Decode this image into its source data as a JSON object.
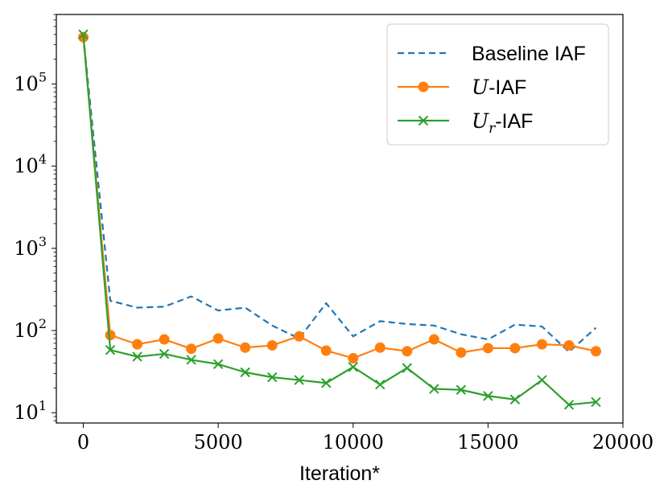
{
  "chart_data": {
    "type": "line",
    "title": "",
    "xlabel": "Iteration*",
    "ylabel": "",
    "xlim": [
      -1000,
      20000
    ],
    "ylim": [
      7.5,
      700000
    ],
    "yscale": "log",
    "grid": false,
    "legend_position": "top-right",
    "x_ticks": [
      0,
      5000,
      10000,
      15000,
      20000
    ],
    "x_tick_labels": [
      "0",
      "5000",
      "10000",
      "15000",
      "20000"
    ],
    "y_ticks": [
      10,
      100,
      1000,
      10000,
      100000
    ],
    "y_tick_labels": [
      {
        "base": "10",
        "exp": "1"
      },
      {
        "base": "10",
        "exp": "2"
      },
      {
        "base": "10",
        "exp": "3"
      },
      {
        "base": "10",
        "exp": "4"
      },
      {
        "base": "10",
        "exp": "5"
      }
    ],
    "series": [
      {
        "name": "Baseline IAF",
        "legend": {
          "main": "Baseline IAF"
        },
        "color": "#1f77b4",
        "style": "dashed",
        "marker": "none",
        "x": [
          0,
          1000,
          2000,
          3000,
          4000,
          5000,
          6000,
          7000,
          8000,
          9000,
          10000,
          11000,
          12000,
          13000,
          14000,
          15000,
          16000,
          17000,
          18000,
          19000
        ],
        "values": [
          380000,
          230,
          190,
          195,
          260,
          175,
          190,
          115,
          80,
          215,
          85,
          130,
          120,
          115,
          90,
          78,
          118,
          112,
          55,
          108
        ]
      },
      {
        "name": "U-IAF",
        "legend": {
          "sym": "U",
          "sub": "",
          "suffix": "-IAF"
        },
        "color": "#ff7f0e",
        "style": "solid",
        "marker": "circle",
        "x": [
          0,
          1000,
          2000,
          3000,
          4000,
          5000,
          6000,
          7000,
          8000,
          9000,
          10000,
          11000,
          12000,
          13000,
          14000,
          15000,
          16000,
          17000,
          18000,
          19000
        ],
        "values": [
          370000,
          88,
          68,
          78,
          60,
          80,
          62,
          66,
          85,
          57,
          46,
          62,
          56,
          78,
          54,
          61,
          61,
          68,
          66,
          56
        ]
      },
      {
        "name": "Ur-IAF",
        "legend": {
          "sym": "U",
          "sub": "r",
          "suffix": "-IAF"
        },
        "color": "#2ca02c",
        "style": "solid",
        "marker": "x",
        "x": [
          0,
          1000,
          2000,
          3000,
          4000,
          5000,
          6000,
          7000,
          8000,
          9000,
          10000,
          11000,
          12000,
          13000,
          14000,
          15000,
          16000,
          17000,
          18000,
          19000
        ],
        "values": [
          400000,
          58,
          48,
          52,
          44,
          39,
          31,
          27,
          25,
          23,
          36,
          22,
          35,
          19.5,
          19,
          16,
          14.5,
          25,
          12.5,
          13.5
        ]
      }
    ]
  }
}
